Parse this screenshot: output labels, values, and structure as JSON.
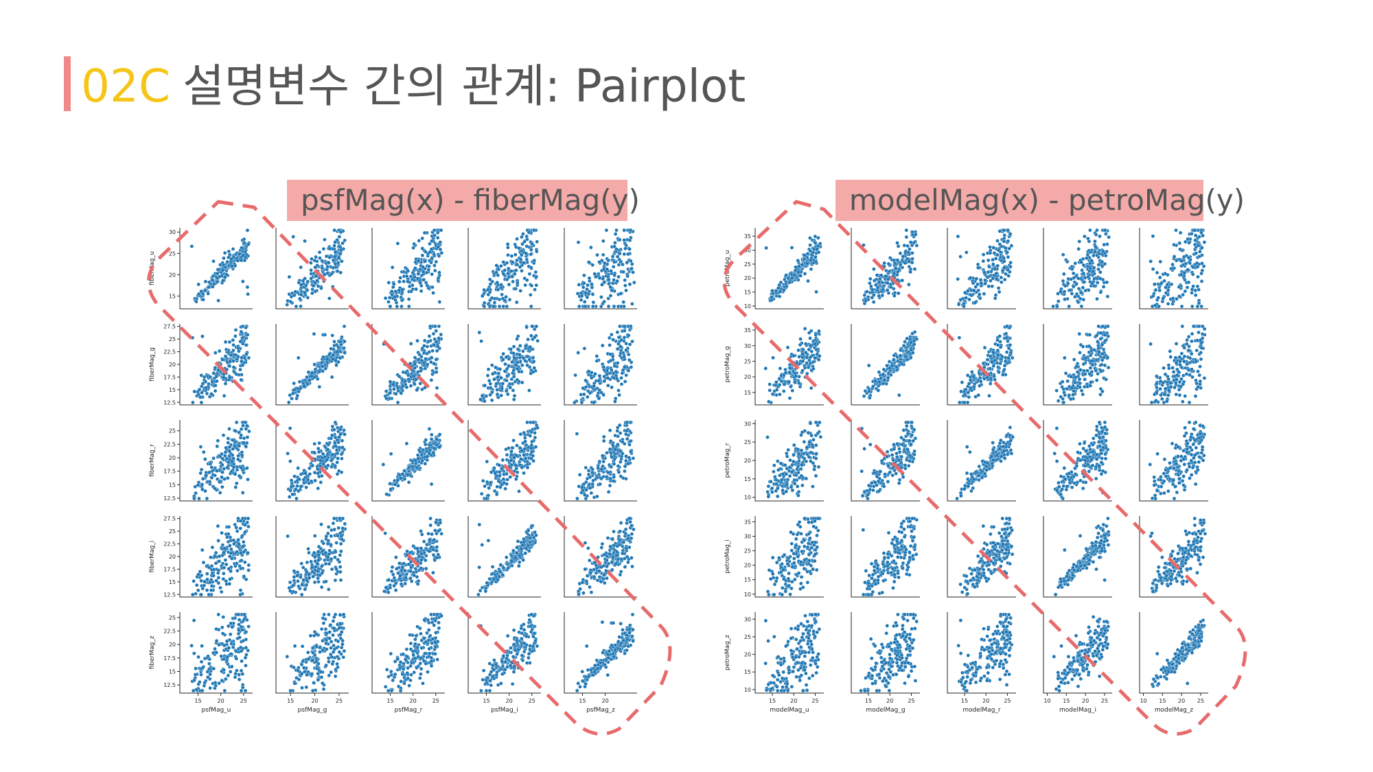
{
  "title": {
    "number": "02C",
    "text": "설명변수 간의 관계: Pairplot"
  },
  "colors": {
    "accent_bar": "#f08a8a",
    "number": "#f5c518",
    "point": "#1f77b4",
    "dashed": "#e86b6b",
    "label_bg": "#f4aaa8"
  },
  "chart_data": [
    {
      "type": "scatter",
      "label": "psfMag(x) - fiberMag(y)",
      "x_vars": [
        "psfMag_u",
        "psfMag_g",
        "psfMag_r",
        "psfMag_i",
        "psfMag_z"
      ],
      "y_vars": [
        "fiberMag_u",
        "fiberMag_g",
        "fiberMag_r",
        "fiberMag_i",
        "fiberMag_z"
      ],
      "x_ticks": [
        [
          15,
          20,
          25
        ],
        [
          15,
          20,
          25
        ],
        [
          15,
          20,
          25
        ],
        [
          15,
          20,
          25
        ],
        [
          15,
          20
        ]
      ],
      "x_range": [
        [
          11,
          27
        ],
        [
          12,
          27
        ],
        [
          11,
          27
        ],
        [
          11,
          27
        ],
        [
          11,
          27
        ]
      ],
      "y_ticks": [
        [
          15,
          20,
          25,
          30
        ],
        [
          12.5,
          15.0,
          17.5,
          20.0,
          22.5,
          25.0,
          27.5
        ],
        [
          12.5,
          15.0,
          17.5,
          20.0,
          22.5,
          25.0
        ],
        [
          12.5,
          15.0,
          17.5,
          20.0,
          22.5,
          25.0,
          27.5
        ],
        [
          12.5,
          15.0,
          17.5,
          20.0,
          22.5,
          25.0
        ]
      ],
      "y_range": [
        [
          12,
          31
        ],
        [
          12,
          28
        ],
        [
          12,
          27
        ],
        [
          12,
          28
        ],
        [
          11,
          26
        ]
      ],
      "highlight": "diagonal"
    },
    {
      "type": "scatter",
      "label": "modelMag(x) - petroMag(y)",
      "x_vars": [
        "modelMag_u",
        "modelMag_g",
        "modelMag_r",
        "modelMag_i",
        "modelMag_z"
      ],
      "y_vars": [
        "petroMag_u",
        "petroMag_g",
        "petroMag_r",
        "petroMag_i",
        "petroMag_z"
      ],
      "x_ticks": [
        [
          15,
          20,
          25
        ],
        [
          15,
          20,
          25
        ],
        [
          15,
          20,
          25
        ],
        [
          10,
          15,
          20,
          25
        ],
        [
          10,
          15,
          20,
          25
        ]
      ],
      "x_range": [
        [
          11,
          27
        ],
        [
          11,
          27
        ],
        [
          11,
          27
        ],
        [
          9,
          27
        ],
        [
          9,
          27
        ]
      ],
      "y_ticks": [
        [
          10,
          15,
          20,
          25,
          30,
          35
        ],
        [
          15,
          20,
          25,
          30,
          35
        ],
        [
          10,
          15,
          20,
          25,
          30
        ],
        [
          10,
          15,
          20,
          25,
          30,
          35
        ],
        [
          10,
          15,
          20,
          25,
          30
        ]
      ],
      "y_range": [
        [
          9,
          38
        ],
        [
          11,
          37
        ],
        [
          9,
          31
        ],
        [
          9,
          37
        ],
        [
          9,
          32
        ]
      ],
      "highlight": "diagonal"
    }
  ]
}
